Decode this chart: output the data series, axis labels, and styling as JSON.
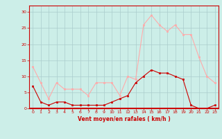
{
  "x": [
    0,
    1,
    2,
    3,
    4,
    5,
    6,
    7,
    8,
    9,
    10,
    11,
    12,
    13,
    14,
    15,
    16,
    17,
    18,
    19,
    20,
    21,
    22,
    23
  ],
  "vent_moyen": [
    7,
    2,
    1,
    2,
    2,
    1,
    1,
    1,
    1,
    1,
    2,
    3,
    4,
    8,
    10,
    12,
    11,
    11,
    10,
    9,
    1,
    0,
    0,
    1
  ],
  "rafales": [
    13,
    8,
    3,
    8,
    6,
    6,
    6,
    4,
    8,
    8,
    8,
    4,
    10,
    9,
    26,
    29,
    26,
    24,
    26,
    23,
    23,
    16,
    10,
    8
  ],
  "line_color_moyen": "#cc0000",
  "line_color_rafales": "#ffaaaa",
  "marker_color_moyen": "#cc0000",
  "marker_color_rafales": "#ffaaaa",
  "bg_color": "#cceee8",
  "grid_color": "#aacccc",
  "xlabel": "Vent moyen/en rafales ( km/h )",
  "xlabel_color": "#cc0000",
  "tick_color": "#cc0000",
  "axis_line_color": "#cc0000",
  "ylim": [
    0,
    32
  ],
  "yticks": [
    0,
    5,
    10,
    15,
    20,
    25,
    30
  ],
  "xlim": [
    -0.5,
    23.5
  ],
  "xticks": [
    0,
    1,
    2,
    3,
    4,
    5,
    6,
    7,
    8,
    9,
    10,
    11,
    12,
    13,
    14,
    15,
    16,
    17,
    18,
    19,
    20,
    21,
    22,
    23
  ]
}
